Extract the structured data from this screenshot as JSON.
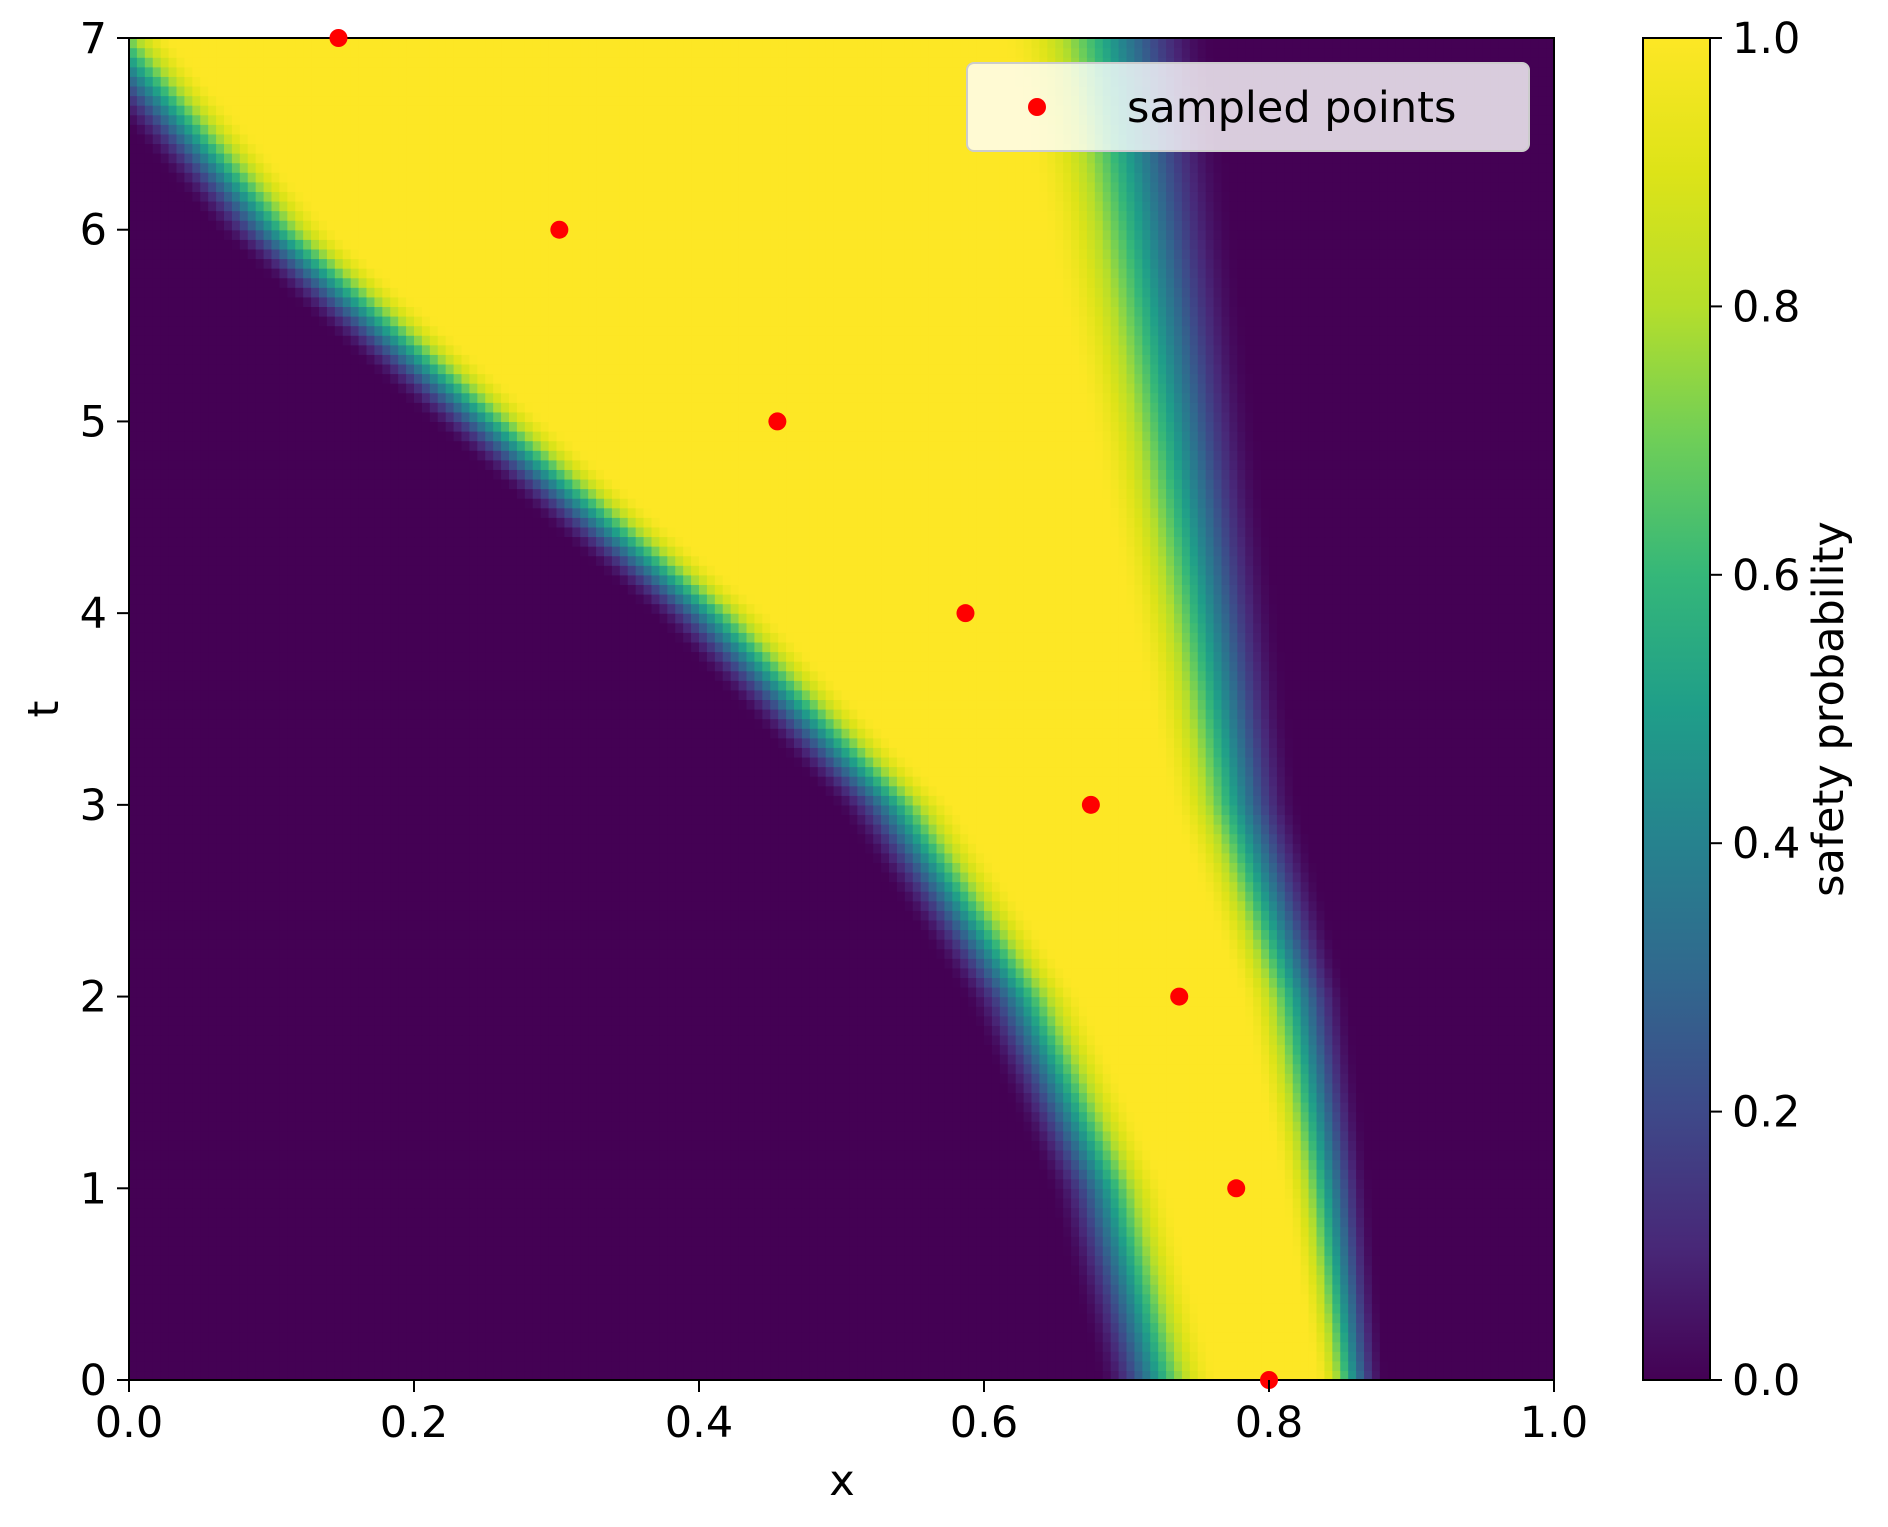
{
  "chart_data": {
    "type": "heatmap",
    "title": "",
    "xlabel": "x",
    "ylabel": "t",
    "xlim": [
      0.0,
      1.0
    ],
    "ylim": [
      0,
      7
    ],
    "x_ticks": [
      "0.0",
      "0.2",
      "0.4",
      "0.6",
      "0.8",
      "1.0"
    ],
    "y_ticks": [
      "0",
      "1",
      "2",
      "3",
      "4",
      "5",
      "6",
      "7"
    ],
    "colorbar": {
      "label": "safety probability",
      "range": [
        0.0,
        1.0
      ],
      "ticks": [
        "0.0",
        "0.2",
        "0.4",
        "0.6",
        "0.8",
        "1.0"
      ],
      "colormap": "viridis"
    },
    "legend": {
      "placement": "upper right",
      "entries": [
        "sampled points"
      ]
    },
    "series": [
      {
        "name": "sampled points",
        "type": "scatter",
        "color": "#ff0000",
        "points": [
          {
            "x": 0.8,
            "t": 0
          },
          {
            "x": 0.777,
            "t": 1
          },
          {
            "x": 0.737,
            "t": 2
          },
          {
            "x": 0.675,
            "t": 3
          },
          {
            "x": 0.587,
            "t": 4
          },
          {
            "x": 0.455,
            "t": 5
          },
          {
            "x": 0.302,
            "t": 6
          },
          {
            "x": 0.147,
            "t": 7
          }
        ]
      }
    ],
    "heatmap_bands": [
      {
        "t_range": [
          0,
          1
        ],
        "safe_left_x": [
          0.735,
          0.7
        ],
        "safe_right_x": [
          0.865,
          0.85
        ]
      },
      {
        "t_range": [
          1,
          2
        ],
        "safe_left_x": [
          0.7,
          0.64
        ],
        "safe_right_x": [
          0.85,
          0.83
        ]
      },
      {
        "t_range": [
          2,
          3
        ],
        "safe_left_x": [
          0.64,
          0.55
        ],
        "safe_right_x": [
          0.83,
          0.79
        ]
      },
      {
        "t_range": [
          3,
          4
        ],
        "safe_left_x": [
          0.55,
          0.42
        ],
        "safe_right_x": [
          0.79,
          0.77
        ]
      },
      {
        "t_range": [
          4,
          5
        ],
        "safe_left_x": [
          0.42,
          0.265
        ],
        "safe_right_x": [
          0.77,
          0.75
        ]
      },
      {
        "t_range": [
          5,
          6
        ],
        "safe_left_x": [
          0.265,
          0.115
        ],
        "safe_right_x": [
          0.75,
          0.73
        ]
      },
      {
        "t_range": [
          6,
          7
        ],
        "safe_left_x": [
          0.115,
          0.0
        ],
        "safe_right_x": [
          0.73,
          0.71
        ]
      }
    ]
  }
}
